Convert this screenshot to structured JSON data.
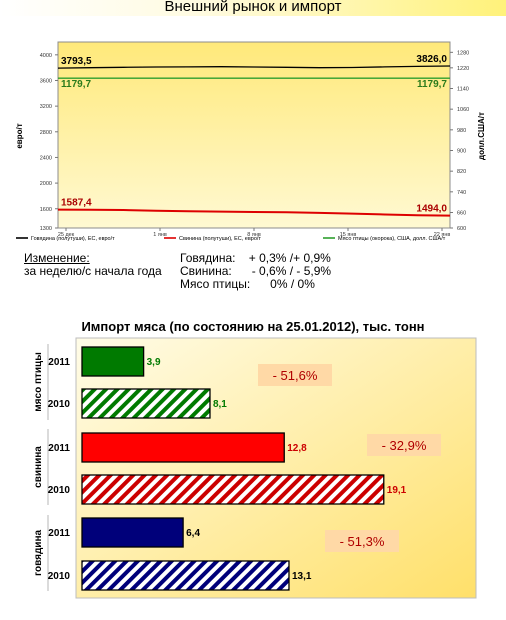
{
  "header": {
    "title": "Внешний рынок и импорт"
  },
  "chart_data": [
    {
      "type": "line",
      "x_tick_labels": [
        "25 дек",
        "1 янв",
        "8 янв",
        "15 янв",
        "22 янв"
      ],
      "y_left": {
        "label": "евро/т",
        "ticks": [
          "1300",
          "1600",
          "2000",
          "2400",
          "2800",
          "3200",
          "3600",
          "4000"
        ],
        "range": [
          1300,
          4200
        ]
      },
      "y_right": {
        "label": "долл.США/т",
        "ticks": [
          "600",
          "660",
          "740",
          "820",
          "900",
          "980",
          "1060",
          "1140",
          "1220",
          "1280"
        ],
        "range": [
          600,
          1320
        ]
      },
      "series": [
        {
          "name": "Говядина (полутуши), ЕС, евро/т",
          "axis": "left",
          "color": "#000000",
          "start_label": "3793,5",
          "end_label": "3826,0",
          "values": [
            3793.5,
            3800,
            3805,
            3810,
            3812,
            3815,
            3810,
            3805,
            3800,
            3802,
            3812,
            3820,
            3826.0
          ]
        },
        {
          "name": "Свинина (полутуши), ЕС, евро/т",
          "axis": "left",
          "color": "#dd0000",
          "start_label": "1587,4",
          "end_label": "1494,0",
          "values": [
            1587.4,
            1585,
            1580,
            1570,
            1560,
            1555,
            1550,
            1545,
            1535,
            1525,
            1510,
            1500,
            1494.0
          ]
        },
        {
          "name": "Мясо птицы (окорока), США, долл. США/т",
          "axis": "right",
          "color": "#2e9e2e",
          "start_label": "1179,7",
          "end_label": "1179,7",
          "values": [
            1179.7,
            1179.7,
            1179.7,
            1179.7,
            1179.7,
            1179.7,
            1179.7,
            1179.7,
            1179.7,
            1179.7,
            1179.7,
            1179.7,
            1179.7
          ]
        }
      ]
    },
    {
      "type": "bar",
      "title": "Импорт мяса (по состоянию на 25.01.2012), тыс. тонн",
      "xlim": [
        0,
        22
      ],
      "groups": [
        {
          "name": "мясо птицы",
          "change": "- 51,6%",
          "bars": [
            {
              "year": "2011",
              "value": 3.9,
              "label": "3,9",
              "color": "#007a00",
              "label_color": "#007a00",
              "hatched": false
            },
            {
              "year": "2010",
              "value": 8.1,
              "label": "8,1",
              "color": "#007a00",
              "label_color": "#007a00",
              "hatched": true
            }
          ]
        },
        {
          "name": "свинина",
          "change": "- 32,9%",
          "bars": [
            {
              "year": "2011",
              "value": 12.8,
              "label": "12,8",
              "color": "#ff0000",
              "label_color": "#cc0000",
              "hatched": false
            },
            {
              "year": "2010",
              "value": 19.1,
              "label": "19,1",
              "color": "#cc0000",
              "label_color": "#cc0000",
              "hatched": true
            }
          ]
        },
        {
          "name": "говядина",
          "change": "- 51,3%",
          "bars": [
            {
              "year": "2011",
              "value": 6.4,
              "label": "6,4",
              "color": "#00007a",
              "label_color": "#000000",
              "hatched": false
            },
            {
              "year": "2010",
              "value": 13.1,
              "label": "13,1",
              "color": "#00007a",
              "label_color": "#000000",
              "hatched": true
            }
          ]
        }
      ]
    }
  ],
  "changes": {
    "label_line1": "Изменение:",
    "label_line2": "за неделю/с начала года",
    "beef": "Говядина:    + 0,3% /+ 0,9%",
    "pork": "Свинина:      - 0,6% / - 5,9%",
    "poultry": "Мясо птицы:      0% / 0%"
  }
}
